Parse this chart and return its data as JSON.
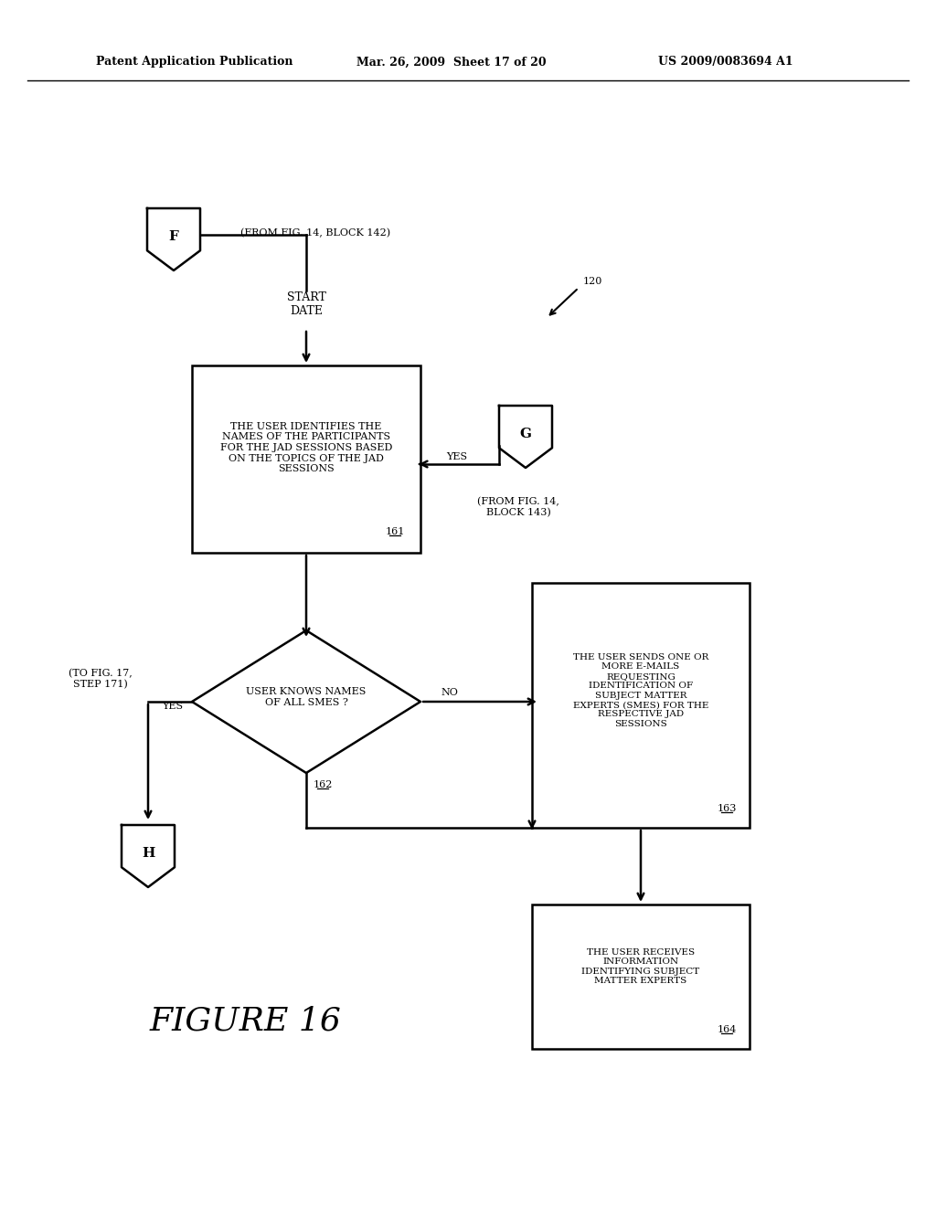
{
  "bg_color": "#ffffff",
  "header_left": "Patent Application Publication",
  "header_mid": "Mar. 26, 2009  Sheet 17 of 20",
  "header_right": "US 2009/0083694 A1",
  "figure_label": "FIGURE 16",
  "ref_120": "120",
  "box161_text": "THE USER IDENTIFIES THE\nNAMES OF THE PARTICIPANTS\nFOR THE JAD SESSIONS BASED\nON THE TOPICS OF THE JAD\nSESSIONS",
  "box161_ref": "161",
  "from_f_text": "(FROM FIG. 14, BLOCK 142)",
  "start_date_text": "START\nDATE",
  "diamond162_text": "USER KNOWS NAMES\nOF ALL SMES ?",
  "diamond162_ref": "162",
  "box163_text": "THE USER SENDS ONE OR\nMORE E-MAILS\nREQUESTING\nIDENTIFICATION OF\nSUBJECT MATTER\nEXPERTS (SMES) FOR THE\nRESPECTIVE JAD\nSESSIONS",
  "box163_ref": "163",
  "box164_text": "THE USER RECEIVES\nINFORMATION\nIDENTIFYING SUBJECT\nMATTER EXPERTS",
  "box164_ref": "164",
  "from_g_text": "(FROM FIG. 14,\nBLOCK 143)",
  "to_fig17_text": "(TO FIG. 17,\nSTEP 171)",
  "yes_label": "YES",
  "no_label": "NO",
  "connector_F": "F",
  "connector_G": "G",
  "connector_H": "H"
}
